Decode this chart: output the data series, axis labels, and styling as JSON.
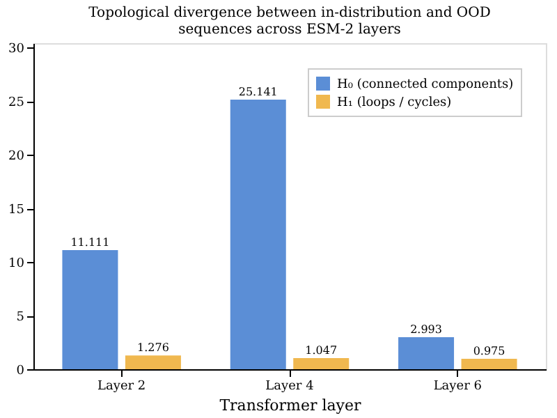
{
  "chart_data": {
    "type": "bar",
    "title": "Topological divergence between in-distribution and OOD\nsequences across ESM-2 layers",
    "xlabel": "Transformer layer",
    "categories": [
      "Layer 2",
      "Layer 4",
      "Layer 6"
    ],
    "series": [
      {
        "name": "H₀ (connected components)",
        "color": "#5b8ed6",
        "values": [
          11.111,
          25.141,
          2.993
        ]
      },
      {
        "name": "H₁ (loops / cycles)",
        "color": "#f0b84f",
        "values": [
          1.276,
          1.047,
          0.975
        ]
      }
    ],
    "ylim": [
      0,
      30.4
    ],
    "yticks": [
      0,
      5,
      10,
      15,
      20,
      25,
      30
    ],
    "data_labels": true,
    "legend": "top right",
    "grid": false
  }
}
